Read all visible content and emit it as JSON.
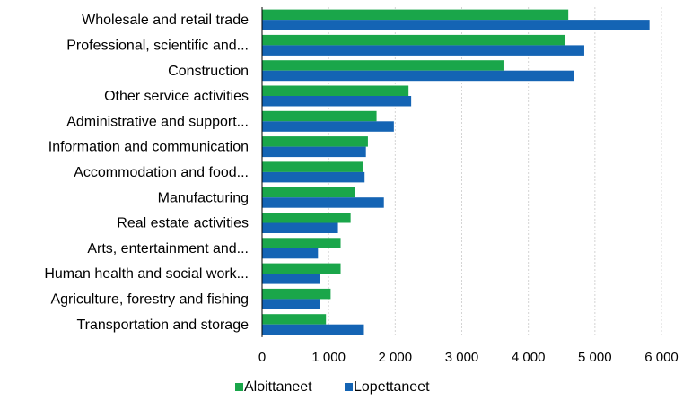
{
  "chart_data": {
    "type": "bar",
    "orientation": "horizontal",
    "categories": [
      "Wholesale and retail trade",
      "Professional, scientific and...",
      "Construction",
      "Other service activities",
      "Administrative and support...",
      "Information and communication",
      "Accommodation and food...",
      "Manufacturing",
      "Real estate activities",
      "Arts, entertainment and...",
      "Human health and social work...",
      "Agriculture, forestry and fishing",
      "Transportation and storage"
    ],
    "series": [
      {
        "name": "Aloittaneet",
        "color": "#1aa64a",
        "values": [
          4600,
          4550,
          3640,
          2200,
          1720,
          1590,
          1510,
          1400,
          1330,
          1180,
          1180,
          1030,
          960
        ]
      },
      {
        "name": "Lopettaneet",
        "color": "#1464b4",
        "values": [
          5820,
          4840,
          4690,
          2240,
          1980,
          1560,
          1540,
          1830,
          1140,
          840,
          870,
          870,
          1530
        ]
      }
    ],
    "xlim": [
      0,
      6000
    ],
    "xticks": [
      0,
      1000,
      2000,
      3000,
      4000,
      5000,
      6000
    ],
    "xtick_labels": [
      "0",
      "1 000",
      "2 000",
      "3 000",
      "4 000",
      "5 000",
      "6 000"
    ],
    "grid": true,
    "legend_position": "bottom"
  }
}
